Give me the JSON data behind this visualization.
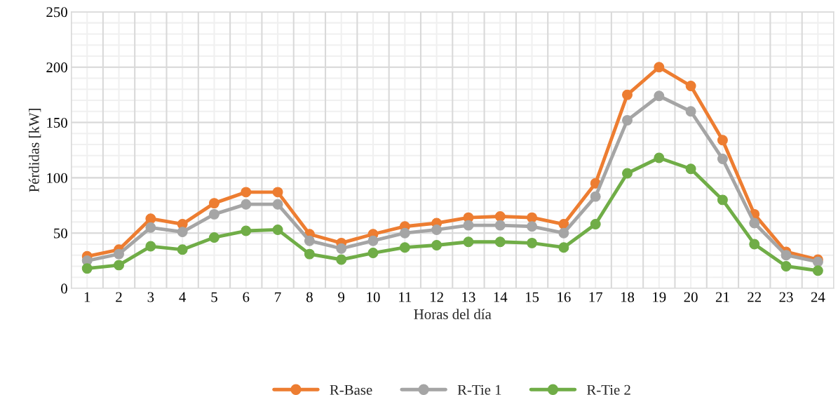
{
  "chart_data": {
    "type": "line",
    "xlabel": "Horas del día",
    "ylabel": "Pérdidas [kW]",
    "categories": [
      "1",
      "2",
      "3",
      "4",
      "5",
      "6",
      "7",
      "8",
      "9",
      "10",
      "11",
      "12",
      "13",
      "14",
      "15",
      "16",
      "17",
      "18",
      "19",
      "20",
      "21",
      "22",
      "23",
      "24"
    ],
    "series": [
      {
        "name": "R-Base",
        "color": "#ed7d31",
        "values": [
          29,
          35,
          63,
          58,
          77,
          87,
          87,
          49,
          41,
          49,
          56,
          59,
          64,
          65,
          64,
          58,
          95,
          175,
          200,
          183,
          134,
          67,
          33,
          26
        ]
      },
      {
        "name": "R-Tie 1",
        "color": "#a5a5a5",
        "values": [
          25,
          31,
          55,
          51,
          67,
          76,
          76,
          43,
          36,
          43,
          50,
          53,
          57,
          57,
          56,
          50,
          83,
          152,
          174,
          160,
          117,
          59,
          30,
          24
        ]
      },
      {
        "name": "R-Tie 2",
        "color": "#70ad47",
        "values": [
          18,
          21,
          38,
          35,
          46,
          52,
          53,
          31,
          26,
          32,
          37,
          39,
          42,
          42,
          41,
          37,
          58,
          104,
          118,
          108,
          80,
          40,
          20,
          16
        ]
      }
    ],
    "ylim": [
      0,
      250
    ],
    "yticks": [
      0,
      50,
      100,
      150,
      200,
      250
    ],
    "grid": true,
    "legend": "bottom",
    "marker": "circle",
    "line_style": "solid"
  }
}
